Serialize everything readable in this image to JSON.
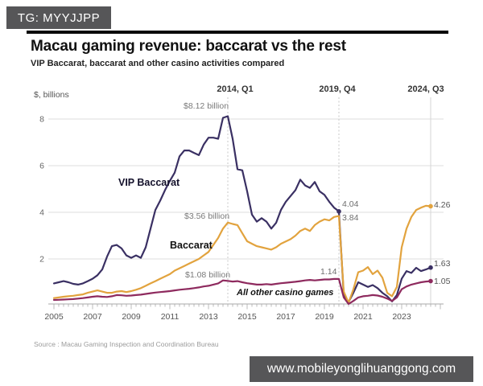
{
  "watermarks": {
    "telegram": "TG: MYYJJPP",
    "website": "www.mobileyonglihuanggong.com"
  },
  "header": {
    "title": "Macau gaming revenue: baccarat vs the rest",
    "subtitle": "VIP Baccarat, baccarat and other casino activities compared"
  },
  "source": "Source : Macau Gaming Inspection and Coordination Bureau",
  "chart_data": {
    "type": "line",
    "title": "Macau gaming revenue: baccarat vs the rest",
    "xlabel": "",
    "ylabel": "$, billions",
    "ylim": [
      0,
      8.5
    ],
    "xlim": [
      2005,
      2025
    ],
    "grid": "horizontal",
    "legend_position": "inline-labels",
    "yticks": [
      2,
      4,
      6,
      8
    ],
    "xticks": [
      2005,
      2007,
      2009,
      2011,
      2013,
      2015,
      2017,
      2019,
      2021,
      2023
    ],
    "event_lines": [
      {
        "label": "2014, Q1",
        "x": 2014.0,
        "style": "dotted"
      },
      {
        "label": "2019, Q4",
        "x": 2019.75,
        "style": "dotted"
      },
      {
        "label": "2024, Q3",
        "x": 2024.5,
        "style": "solid"
      }
    ],
    "annotations": {
      "vip_peak": "$8.12 billion",
      "baccarat_peak": "$3.56 billion",
      "other_peak": "$1.08 billion",
      "vip_2019": "4.04",
      "baccarat_2019": "3.84",
      "other_2019": "1.14",
      "baccarat_end": "4.26",
      "vip_end": "1.63",
      "other_end": "1.05"
    },
    "markers": [
      {
        "series": 0,
        "x": 2019.75,
        "v": 4.04
      }
    ],
    "series": [
      {
        "name": "VIP Baccarat",
        "color": "#3a3063",
        "points": [
          [
            2005.0,
            0.95
          ],
          [
            2005.25,
            1.0
          ],
          [
            2005.5,
            1.05
          ],
          [
            2005.75,
            1.0
          ],
          [
            2006.0,
            0.93
          ],
          [
            2006.25,
            0.9
          ],
          [
            2006.5,
            0.95
          ],
          [
            2006.75,
            1.05
          ],
          [
            2007.0,
            1.15
          ],
          [
            2007.25,
            1.3
          ],
          [
            2007.5,
            1.55
          ],
          [
            2007.75,
            2.1
          ],
          [
            2008.0,
            2.55
          ],
          [
            2008.25,
            2.6
          ],
          [
            2008.5,
            2.45
          ],
          [
            2008.75,
            2.15
          ],
          [
            2009.0,
            2.05
          ],
          [
            2009.25,
            2.15
          ],
          [
            2009.5,
            2.05
          ],
          [
            2009.75,
            2.5
          ],
          [
            2010.0,
            3.3
          ],
          [
            2010.25,
            4.1
          ],
          [
            2010.5,
            4.5
          ],
          [
            2010.75,
            4.95
          ],
          [
            2011.0,
            5.35
          ],
          [
            2011.25,
            5.7
          ],
          [
            2011.5,
            6.4
          ],
          [
            2011.75,
            6.65
          ],
          [
            2012.0,
            6.65
          ],
          [
            2012.25,
            6.55
          ],
          [
            2012.5,
            6.45
          ],
          [
            2012.75,
            6.9
          ],
          [
            2013.0,
            7.2
          ],
          [
            2013.25,
            7.2
          ],
          [
            2013.5,
            7.15
          ],
          [
            2013.75,
            8.05
          ],
          [
            2014.0,
            8.12
          ],
          [
            2014.25,
            7.15
          ],
          [
            2014.5,
            5.85
          ],
          [
            2014.75,
            5.8
          ],
          [
            2015.0,
            4.9
          ],
          [
            2015.25,
            3.9
          ],
          [
            2015.5,
            3.6
          ],
          [
            2015.75,
            3.75
          ],
          [
            2016.0,
            3.6
          ],
          [
            2016.25,
            3.3
          ],
          [
            2016.5,
            3.55
          ],
          [
            2016.75,
            4.1
          ],
          [
            2017.0,
            4.45
          ],
          [
            2017.25,
            4.7
          ],
          [
            2017.5,
            4.95
          ],
          [
            2017.75,
            5.4
          ],
          [
            2018.0,
            5.15
          ],
          [
            2018.25,
            5.05
          ],
          [
            2018.5,
            5.3
          ],
          [
            2018.75,
            4.9
          ],
          [
            2019.0,
            4.75
          ],
          [
            2019.25,
            4.45
          ],
          [
            2019.5,
            4.2
          ],
          [
            2019.75,
            4.04
          ],
          [
            2020.0,
            0.45
          ],
          [
            2020.25,
            0.15
          ],
          [
            2020.5,
            0.55
          ],
          [
            2020.75,
            1.0
          ],
          [
            2021.0,
            0.9
          ],
          [
            2021.25,
            0.8
          ],
          [
            2021.5,
            0.88
          ],
          [
            2021.75,
            0.75
          ],
          [
            2022.0,
            0.55
          ],
          [
            2022.25,
            0.4
          ],
          [
            2022.5,
            0.18
          ],
          [
            2022.75,
            0.45
          ],
          [
            2023.0,
            1.15
          ],
          [
            2023.25,
            1.48
          ],
          [
            2023.5,
            1.4
          ],
          [
            2023.75,
            1.62
          ],
          [
            2024.0,
            1.48
          ],
          [
            2024.25,
            1.55
          ],
          [
            2024.5,
            1.63
          ]
        ]
      },
      {
        "name": "Baccarat",
        "color": "#e2a33e",
        "points": [
          [
            2005.0,
            0.32
          ],
          [
            2005.25,
            0.35
          ],
          [
            2005.5,
            0.38
          ],
          [
            2005.75,
            0.4
          ],
          [
            2006.0,
            0.42
          ],
          [
            2006.25,
            0.45
          ],
          [
            2006.5,
            0.48
          ],
          [
            2006.75,
            0.55
          ],
          [
            2007.0,
            0.6
          ],
          [
            2007.25,
            0.65
          ],
          [
            2007.5,
            0.6
          ],
          [
            2007.75,
            0.55
          ],
          [
            2008.0,
            0.55
          ],
          [
            2008.25,
            0.6
          ],
          [
            2008.5,
            0.62
          ],
          [
            2008.75,
            0.58
          ],
          [
            2009.0,
            0.62
          ],
          [
            2009.25,
            0.68
          ],
          [
            2009.5,
            0.75
          ],
          [
            2009.75,
            0.85
          ],
          [
            2010.0,
            0.95
          ],
          [
            2010.25,
            1.05
          ],
          [
            2010.5,
            1.15
          ],
          [
            2010.75,
            1.25
          ],
          [
            2011.0,
            1.35
          ],
          [
            2011.25,
            1.5
          ],
          [
            2011.5,
            1.6
          ],
          [
            2011.75,
            1.7
          ],
          [
            2012.0,
            1.8
          ],
          [
            2012.25,
            1.9
          ],
          [
            2012.5,
            2.0
          ],
          [
            2012.75,
            2.15
          ],
          [
            2013.0,
            2.3
          ],
          [
            2013.25,
            2.6
          ],
          [
            2013.5,
            2.9
          ],
          [
            2013.75,
            3.3
          ],
          [
            2014.0,
            3.56
          ],
          [
            2014.25,
            3.5
          ],
          [
            2014.5,
            3.45
          ],
          [
            2014.75,
            3.1
          ],
          [
            2015.0,
            2.76
          ],
          [
            2015.25,
            2.65
          ],
          [
            2015.5,
            2.55
          ],
          [
            2015.75,
            2.5
          ],
          [
            2016.0,
            2.45
          ],
          [
            2016.25,
            2.4
          ],
          [
            2016.5,
            2.5
          ],
          [
            2016.75,
            2.65
          ],
          [
            2017.0,
            2.75
          ],
          [
            2017.25,
            2.85
          ],
          [
            2017.5,
            3.0
          ],
          [
            2017.75,
            3.2
          ],
          [
            2018.0,
            3.3
          ],
          [
            2018.25,
            3.2
          ],
          [
            2018.5,
            3.45
          ],
          [
            2018.75,
            3.6
          ],
          [
            2019.0,
            3.7
          ],
          [
            2019.25,
            3.65
          ],
          [
            2019.5,
            3.8
          ],
          [
            2019.75,
            3.84
          ],
          [
            2020.0,
            0.6
          ],
          [
            2020.25,
            0.12
          ],
          [
            2020.5,
            0.7
          ],
          [
            2020.75,
            1.43
          ],
          [
            2021.0,
            1.5
          ],
          [
            2021.25,
            1.65
          ],
          [
            2021.5,
            1.35
          ],
          [
            2021.75,
            1.5
          ],
          [
            2022.0,
            1.2
          ],
          [
            2022.25,
            0.55
          ],
          [
            2022.5,
            0.4
          ],
          [
            2022.75,
            0.8
          ],
          [
            2023.0,
            2.5
          ],
          [
            2023.25,
            3.3
          ],
          [
            2023.5,
            3.8
          ],
          [
            2023.75,
            4.1
          ],
          [
            2024.0,
            4.2
          ],
          [
            2024.25,
            4.28
          ],
          [
            2024.5,
            4.26
          ]
        ]
      },
      {
        "name": "All other casino games",
        "color": "#8e2a5e",
        "points": [
          [
            2005.0,
            0.24
          ],
          [
            2005.25,
            0.25
          ],
          [
            2005.5,
            0.26
          ],
          [
            2005.75,
            0.27
          ],
          [
            2006.0,
            0.28
          ],
          [
            2006.25,
            0.3
          ],
          [
            2006.5,
            0.32
          ],
          [
            2006.75,
            0.35
          ],
          [
            2007.0,
            0.38
          ],
          [
            2007.25,
            0.4
          ],
          [
            2007.5,
            0.38
          ],
          [
            2007.75,
            0.37
          ],
          [
            2008.0,
            0.4
          ],
          [
            2008.25,
            0.45
          ],
          [
            2008.5,
            0.44
          ],
          [
            2008.75,
            0.42
          ],
          [
            2009.0,
            0.43
          ],
          [
            2009.25,
            0.45
          ],
          [
            2009.5,
            0.47
          ],
          [
            2009.75,
            0.5
          ],
          [
            2010.0,
            0.53
          ],
          [
            2010.25,
            0.56
          ],
          [
            2010.5,
            0.58
          ],
          [
            2010.75,
            0.6
          ],
          [
            2011.0,
            0.62
          ],
          [
            2011.25,
            0.65
          ],
          [
            2011.5,
            0.68
          ],
          [
            2011.75,
            0.7
          ],
          [
            2012.0,
            0.72
          ],
          [
            2012.25,
            0.75
          ],
          [
            2012.5,
            0.78
          ],
          [
            2012.75,
            0.82
          ],
          [
            2013.0,
            0.85
          ],
          [
            2013.25,
            0.9
          ],
          [
            2013.5,
            0.95
          ],
          [
            2013.75,
            1.08
          ],
          [
            2014.0,
            1.06
          ],
          [
            2014.25,
            1.03
          ],
          [
            2014.5,
            1.05
          ],
          [
            2014.75,
            1.0
          ],
          [
            2015.0,
            0.96
          ],
          [
            2015.25,
            0.93
          ],
          [
            2015.5,
            0.9
          ],
          [
            2015.75,
            0.9
          ],
          [
            2016.0,
            0.92
          ],
          [
            2016.25,
            0.9
          ],
          [
            2016.5,
            0.93
          ],
          [
            2016.75,
            0.96
          ],
          [
            2017.0,
            0.98
          ],
          [
            2017.25,
            1.0
          ],
          [
            2017.5,
            1.02
          ],
          [
            2017.75,
            1.05
          ],
          [
            2018.0,
            1.08
          ],
          [
            2018.25,
            1.1
          ],
          [
            2018.5,
            1.08
          ],
          [
            2018.75,
            1.1
          ],
          [
            2019.0,
            1.12
          ],
          [
            2019.25,
            1.12
          ],
          [
            2019.5,
            1.14
          ],
          [
            2019.75,
            1.14
          ],
          [
            2020.0,
            0.35
          ],
          [
            2020.25,
            0.07
          ],
          [
            2020.5,
            0.2
          ],
          [
            2020.75,
            0.35
          ],
          [
            2021.0,
            0.4
          ],
          [
            2021.25,
            0.42
          ],
          [
            2021.5,
            0.45
          ],
          [
            2021.75,
            0.43
          ],
          [
            2022.0,
            0.38
          ],
          [
            2022.25,
            0.3
          ],
          [
            2022.5,
            0.2
          ],
          [
            2022.75,
            0.35
          ],
          [
            2023.0,
            0.7
          ],
          [
            2023.25,
            0.82
          ],
          [
            2023.5,
            0.9
          ],
          [
            2023.75,
            0.95
          ],
          [
            2024.0,
            1.0
          ],
          [
            2024.25,
            1.03
          ],
          [
            2024.5,
            1.05
          ]
        ]
      }
    ]
  }
}
